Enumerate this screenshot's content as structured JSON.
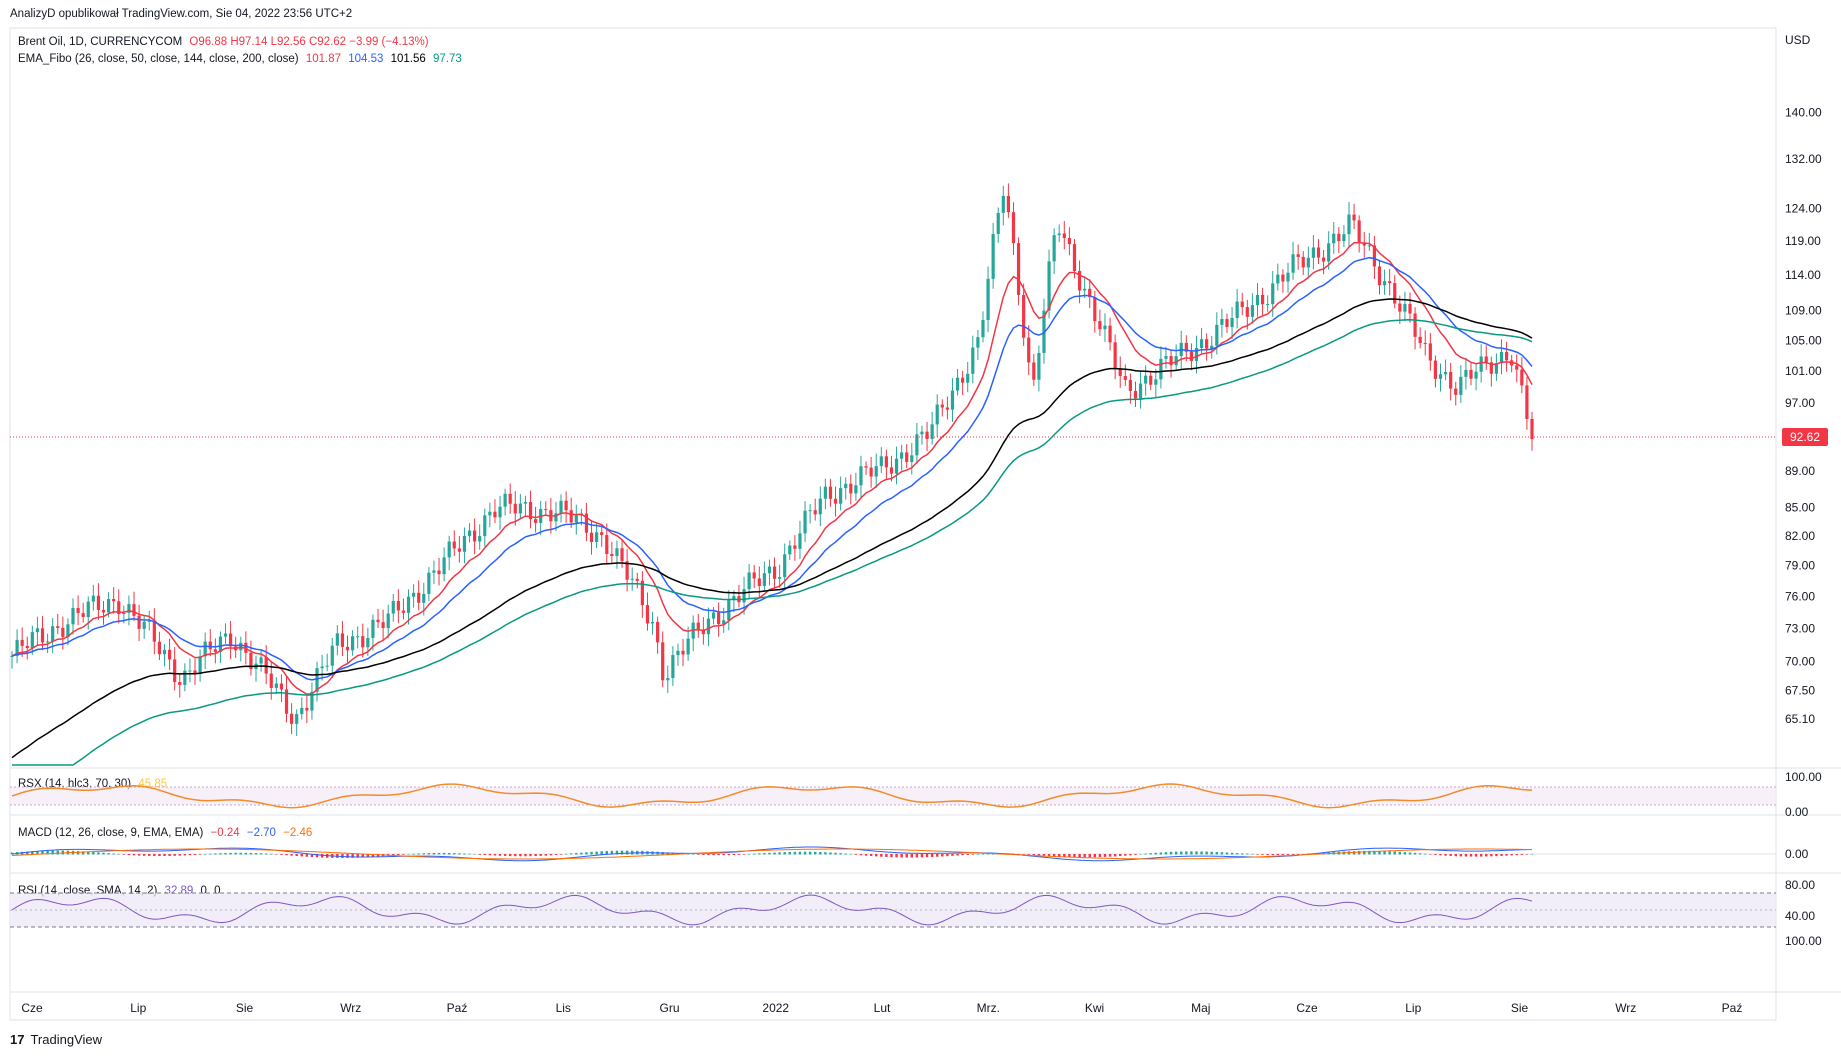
{
  "header": {
    "publisher": "AnalizyD opublikował TradingView.com, Sie 04, 2022 23:56 UTC+2"
  },
  "legend": {
    "symbol": "Brent Oil, 1D, CURRENCYCOM",
    "ohlc": "O96.88 H97.14 L92.56 C92.62 −3.99 (−4.13%)",
    "ema_label": "EMA_Fibo (26, close, 50, close, 144, close, 200, close)",
    "ema_values": [
      "101.87",
      "104.53",
      "101.56",
      "97.73"
    ]
  },
  "panes": {
    "rsx": {
      "label": "RSX (14, hlc3, 70, 30)",
      "value": "45.85"
    },
    "macd": {
      "label": "MACD (12, 26, close, 9, EMA, EMA)",
      "values": [
        "−0.24",
        "−2.70",
        "−2.46"
      ]
    },
    "rsi": {
      "label": "RSI (14, close, SMA, 14, 2)",
      "values": [
        "32.89",
        "0",
        "0"
      ]
    }
  },
  "price_axis": {
    "currency": "USD",
    "ticks": [
      "140.00",
      "132.00",
      "124.00",
      "119.00",
      "114.00",
      "109.00",
      "105.00",
      "101.00",
      "97.00",
      "89.00",
      "85.00",
      "82.00",
      "79.00",
      "76.00",
      "73.00",
      "70.00",
      "67.50",
      "65.10"
    ],
    "last_price": "92.62"
  },
  "rsx_axis": [
    "100.00",
    "0.00"
  ],
  "macd_axis": [
    "0.00"
  ],
  "rsi_axis": [
    "80.00",
    "40.00",
    "100.00"
  ],
  "time_axis": [
    "Cze",
    "Lip",
    "Sie",
    "Wrz",
    "Paź",
    "Lis",
    "Gru",
    "2022",
    "Lut",
    "Mrz.",
    "Kwi",
    "Maj",
    "Cze",
    "Lip",
    "Sie",
    "Wrz",
    "Paź"
  ],
  "footer": {
    "brand": "TradingView",
    "logo": "17"
  },
  "colors": {
    "up": "#26a69a",
    "down": "#f23645",
    "ema26": "#f23645",
    "ema50": "#2962ff",
    "ema144": "#000000",
    "ema200": "#089981",
    "rsx_up": "#22ab3b",
    "rsi": "#7e57c2"
  },
  "chart_data": {
    "type": "candlestick",
    "symbol": "Brent Oil",
    "last": 92.62,
    "price_range": [
      63,
      144
    ],
    "close_series_approx": [
      {
        "x": "2021-06-01",
        "close": 70.5
      },
      {
        "x": "2021-06-15",
        "close": 73.5
      },
      {
        "x": "2021-07-01",
        "close": 75.8
      },
      {
        "x": "2021-07-19",
        "close": 68.6
      },
      {
        "x": "2021-08-02",
        "close": 72.5
      },
      {
        "x": "2021-08-20",
        "close": 65.2
      },
      {
        "x": "2021-09-01",
        "close": 71.5
      },
      {
        "x": "2021-09-15",
        "close": 73.6
      },
      {
        "x": "2021-10-01",
        "close": 79.3
      },
      {
        "x": "2021-10-15",
        "close": 84.9
      },
      {
        "x": "2021-11-01",
        "close": 84.7
      },
      {
        "x": "2021-11-15",
        "close": 82.0
      },
      {
        "x": "2021-11-29",
        "close": 73.4
      },
      {
        "x": "2021-12-02",
        "close": 69.0
      },
      {
        "x": "2021-12-15",
        "close": 73.9
      },
      {
        "x": "2022-01-03",
        "close": 78.9
      },
      {
        "x": "2022-01-17",
        "close": 86.5
      },
      {
        "x": "2022-02-01",
        "close": 89.2
      },
      {
        "x": "2022-02-15",
        "close": 93.3
      },
      {
        "x": "2022-03-01",
        "close": 104.9
      },
      {
        "x": "2022-03-08",
        "close": 127.9
      },
      {
        "x": "2022-03-16",
        "close": 98.0
      },
      {
        "x": "2022-03-23",
        "close": 121.6
      },
      {
        "x": "2022-04-11",
        "close": 98.5
      },
      {
        "x": "2022-04-25",
        "close": 102.3
      },
      {
        "x": "2022-05-11",
        "close": 107.5
      },
      {
        "x": "2022-06-01",
        "close": 116.3
      },
      {
        "x": "2022-06-14",
        "close": 121.2
      },
      {
        "x": "2022-06-24",
        "close": 113.1
      },
      {
        "x": "2022-07-05",
        "close": 103.0
      },
      {
        "x": "2022-07-14",
        "close": 99.0
      },
      {
        "x": "2022-07-29",
        "close": 103.9
      },
      {
        "x": "2022-08-04",
        "close": 92.62
      }
    ]
  }
}
